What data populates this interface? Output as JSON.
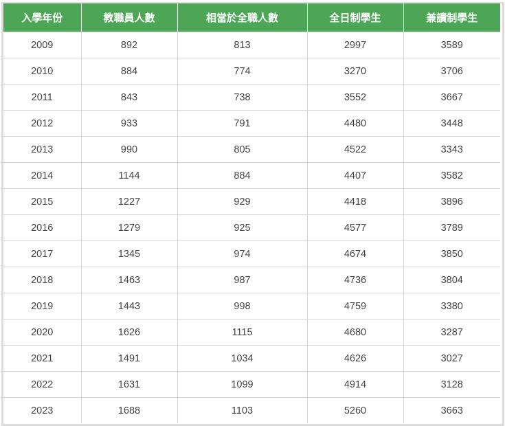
{
  "table": {
    "headers": [
      "入學年份",
      "教職員人數",
      "相當於全職人數",
      "全日制學生",
      "兼讀制學生"
    ],
    "rows": [
      [
        "2009",
        "892",
        "813",
        "2997",
        "3589"
      ],
      [
        "2010",
        "884",
        "774",
        "3270",
        "3706"
      ],
      [
        "2011",
        "843",
        "738",
        "3552",
        "3667"
      ],
      [
        "2012",
        "933",
        "791",
        "4480",
        "3448"
      ],
      [
        "2013",
        "990",
        "805",
        "4522",
        "3343"
      ],
      [
        "2014",
        "1144",
        "884",
        "4407",
        "3582"
      ],
      [
        "2015",
        "1227",
        "929",
        "4418",
        "3896"
      ],
      [
        "2016",
        "1279",
        "925",
        "4577",
        "3789"
      ],
      [
        "2017",
        "1345",
        "974",
        "4674",
        "3850"
      ],
      [
        "2018",
        "1463",
        "987",
        "4736",
        "3804"
      ],
      [
        "2019",
        "1443",
        "998",
        "4759",
        "3380"
      ],
      [
        "2020",
        "1626",
        "1115",
        "4680",
        "3287"
      ],
      [
        "2021",
        "1491",
        "1034",
        "4626",
        "3027"
      ],
      [
        "2022",
        "1631",
        "1099",
        "4914",
        "3128"
      ],
      [
        "2023",
        "1688",
        "1103",
        "5260",
        "3663"
      ]
    ]
  },
  "colors": {
    "header_bg": "#4ca656",
    "header_text": "#ffffff",
    "cell_text": "#444444",
    "grid": "#d4d4d4"
  }
}
